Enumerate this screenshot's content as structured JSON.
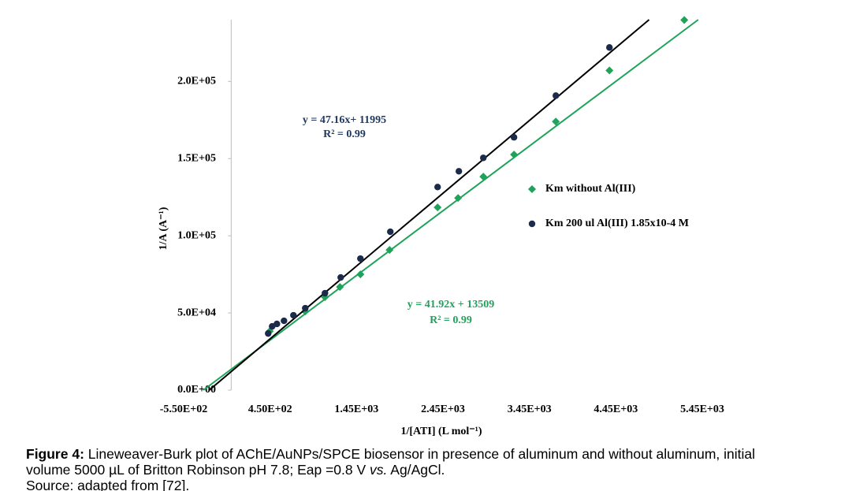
{
  "chart_data": {
    "type": "scatter",
    "xlabel": "1/[ATI]  (L mol⁻¹)",
    "ylabel": "1/A (A⁻¹)",
    "xlim": [
      -550,
      5450
    ],
    "ylim": [
      0,
      240000
    ],
    "xticks": [
      {
        "value": -550,
        "label": "-5.50E+02"
      },
      {
        "value": 450,
        "label": "4.50E+02"
      },
      {
        "value": 1450,
        "label": "1.45E+03"
      },
      {
        "value": 2450,
        "label": "2.45E+03"
      },
      {
        "value": 3450,
        "label": "3.45E+03"
      },
      {
        "value": 4450,
        "label": "4.45E+03"
      },
      {
        "value": 5450,
        "label": "5.45E+03"
      }
    ],
    "yticks": [
      {
        "value": 0,
        "label": "0.0E+00"
      },
      {
        "value": 50000,
        "label": "5.0E+04"
      },
      {
        "value": 100000,
        "label": "1.0E+05"
      },
      {
        "value": 150000,
        "label": "1.5E+05"
      },
      {
        "value": 200000,
        "label": "2.0E+05"
      }
    ],
    "legend": "right",
    "series": [
      {
        "name": "Km without Al(III)",
        "color": "#1fa35a",
        "line_color": "#1fa35a",
        "marker": "diamond",
        "x": [
          447,
          857,
          1085,
          1258,
          1495,
          1832,
          2388,
          2625,
          2917,
          3272,
          3756,
          4376,
          5242
        ],
        "values": [
          38265,
          51000,
          60200,
          66800,
          75000,
          90800,
          118400,
          124500,
          138300,
          152600,
          174000,
          207100,
          239800
        ],
        "trendline": {
          "equation": "y = 41.92x + 13509",
          "r2": "R² = 0.99",
          "slope": 41.92,
          "intercept": 13509
        }
      },
      {
        "name": "Km  200 ul Al(III) 1.85x10-4 M",
        "color": "#1c2b4a",
        "line_color": "#000000",
        "marker": "circle",
        "x": [
          428,
          474,
          529,
          611,
          720,
          857,
          1085,
          1267,
          1495,
          1841,
          2388,
          2634,
          2917,
          3272,
          3756,
          4376
        ],
        "values": [
          36700,
          41300,
          42900,
          44900,
          48500,
          53100,
          62800,
          73000,
          85200,
          102600,
          131600,
          141800,
          150500,
          163800,
          190800,
          222000
        ],
        "trendline": {
          "equation": "y = 47.16x+ 11995",
          "r2": "R² = 0.99",
          "slope": 47.16,
          "intercept": 11995
        }
      }
    ]
  },
  "caption": {
    "label": "Figure 4:",
    "line1": " Lineweaver-Burk plot of AChE/AuNPs/SPCE biosensor in presence of aluminum and without aluminum, initial",
    "line2a": "volume 5000 µL of Britton Robinson pH 7.8; Eap =0.8 V ",
    "line2b": "vs.",
    "line2c": " Ag/AgCl.",
    "line3": "Source: adapted from [72]."
  }
}
